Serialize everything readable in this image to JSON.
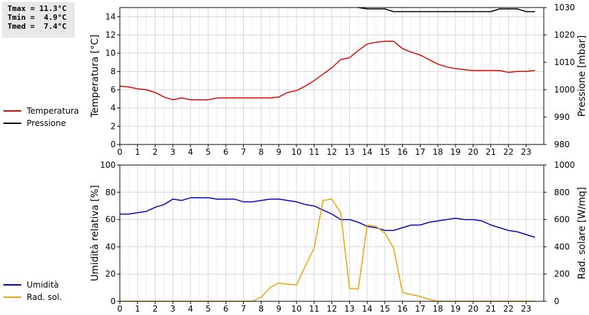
{
  "stats": {
    "tmax": "Tmax = 11.3°C",
    "tmin": "Tmin =  4.9°C",
    "tmed": "Tmed =  7.4°C"
  },
  "legend_top": [
    {
      "label": "Temperatura",
      "color": "#dd0000"
    },
    {
      "label": "Pressione",
      "color": "#000000"
    }
  ],
  "legend_bottom": [
    {
      "label": "Umidità",
      "color": "#0000bb"
    },
    {
      "label": "Rad. sol.",
      "color": "#f0a000"
    }
  ],
  "chart_data": [
    {
      "type": "line",
      "ylabel": "Temperatura [°C]",
      "y2label": "Pressione [mbar]",
      "xlim": [
        0,
        24
      ],
      "x_ticks": [
        "0",
        "1",
        "2",
        "3",
        "4",
        "5",
        "6",
        "7",
        "8",
        "9",
        "10",
        "11",
        "12",
        "13",
        "14",
        "15",
        "16",
        "17",
        "18",
        "19",
        "20",
        "21",
        "22",
        "23"
      ],
      "ylim": [
        0,
        15
      ],
      "y_ticks": [
        "0",
        "2",
        "4",
        "6",
        "8",
        "10",
        "12",
        "14"
      ],
      "y2lim": [
        980,
        1030
      ],
      "y2_ticks": [
        "980",
        "990",
        "1000",
        "1010",
        "1020",
        "1030"
      ],
      "grid": true,
      "series": [
        {
          "name": "Temperatura",
          "axis": "left",
          "color": "#dd0000",
          "x": [
            0,
            0.5,
            1,
            1.5,
            2,
            2.5,
            3,
            3.5,
            4,
            4.5,
            5,
            5.5,
            6,
            6.5,
            7,
            7.5,
            8,
            8.5,
            9,
            9.5,
            10,
            10.5,
            11,
            11.5,
            12,
            12.5,
            13,
            13.5,
            14,
            14.5,
            15,
            15.5,
            16,
            16.5,
            17,
            17.5,
            18,
            18.5,
            19,
            19.5,
            20,
            20.5,
            21,
            21.5,
            22,
            22.5,
            23,
            23.5
          ],
          "values": [
            6.4,
            6.3,
            6.1,
            6.0,
            5.7,
            5.2,
            4.9,
            5.1,
            4.9,
            4.9,
            4.9,
            5.1,
            5.1,
            5.1,
            5.1,
            5.1,
            5.1,
            5.1,
            5.2,
            5.7,
            5.9,
            6.4,
            7.0,
            7.7,
            8.4,
            9.3,
            9.5,
            10.3,
            11.0,
            11.2,
            11.3,
            11.3,
            10.5,
            10.1,
            9.8,
            9.3,
            8.8,
            8.5,
            8.3,
            8.2,
            8.1,
            8.1,
            8.1,
            8.1,
            7.9,
            8.0,
            8.0,
            8.1
          ]
        },
        {
          "name": "Pressione",
          "axis": "right",
          "color": "#000000",
          "x": [
            13.5,
            14,
            14.5,
            15,
            15.5,
            16,
            16.5,
            17,
            17.5,
            18,
            18.5,
            19,
            19.5,
            20,
            20.5,
            21,
            21.5,
            22,
            22.5,
            23,
            23.5
          ],
          "values": [
            1030,
            1029.5,
            1029.5,
            1029.5,
            1028.5,
            1028.5,
            1028.5,
            1028.5,
            1028.5,
            1028.5,
            1028.5,
            1028.5,
            1028.5,
            1028.5,
            1028.5,
            1028.5,
            1029.5,
            1029.5,
            1029.5,
            1028.5,
            1028.5
          ]
        }
      ]
    },
    {
      "type": "line",
      "ylabel": "Umidità relativa [%]",
      "y2label": "Rad. solare [W/mq]",
      "xlim": [
        0,
        24
      ],
      "x_ticks": [
        "0",
        "1",
        "2",
        "3",
        "4",
        "5",
        "6",
        "7",
        "8",
        "9",
        "10",
        "11",
        "12",
        "13",
        "14",
        "15",
        "16",
        "17",
        "18",
        "19",
        "20",
        "21",
        "22",
        "23"
      ],
      "ylim": [
        0,
        100
      ],
      "y_ticks": [
        "0",
        "20",
        "40",
        "60",
        "80",
        "100"
      ],
      "y2lim": [
        0,
        1000
      ],
      "y2_ticks": [
        "0",
        "200",
        "400",
        "600",
        "800",
        "1000"
      ],
      "grid": true,
      "series": [
        {
          "name": "Umidità",
          "axis": "left",
          "color": "#0000bb",
          "x": [
            0,
            0.5,
            1,
            1.5,
            2,
            2.5,
            3,
            3.5,
            4,
            4.5,
            5,
            5.5,
            6,
            6.5,
            7,
            7.5,
            8,
            8.5,
            9,
            9.5,
            10,
            10.5,
            11,
            11.5,
            12,
            12.5,
            13,
            13.5,
            14,
            14.5,
            15,
            15.5,
            16,
            16.5,
            17,
            17.5,
            18,
            18.5,
            19,
            19.5,
            20,
            20.5,
            21,
            21.5,
            22,
            22.5,
            23,
            23.5
          ],
          "values": [
            64,
            64,
            65,
            66,
            69,
            71,
            75,
            74,
            76,
            76,
            76,
            75,
            75,
            75,
            73,
            73,
            74,
            75,
            75,
            74,
            73,
            71,
            70,
            67,
            64,
            60,
            60,
            58,
            55,
            54,
            52,
            52,
            54,
            56,
            56,
            58,
            59,
            60,
            61,
            60,
            60,
            59,
            56,
            54,
            52,
            51,
            49,
            47
          ]
        },
        {
          "name": "Rad. sol.",
          "axis": "right",
          "color": "#f0a000",
          "x": [
            0,
            7.5,
            8,
            8.5,
            9,
            9.5,
            10,
            10.5,
            11,
            11.5,
            12,
            12.5,
            13,
            13.5,
            14,
            14.5,
            15,
            15.5,
            16,
            16.5,
            17,
            17.5,
            18,
            18.5,
            19,
            23.5
          ],
          "values": [
            0,
            0,
            30,
            100,
            135,
            125,
            120,
            260,
            390,
            740,
            750,
            650,
            95,
            90,
            560,
            550,
            500,
            390,
            65,
            50,
            35,
            15,
            0,
            0,
            0,
            0
          ]
        }
      ]
    }
  ]
}
